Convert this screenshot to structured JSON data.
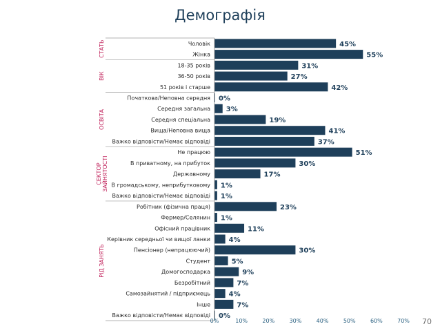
{
  "title": "Демографія",
  "page_number": "70",
  "colors": {
    "bar": "#1e3f5a",
    "group_label": "#c0205a",
    "divider": "#9a9a9a"
  },
  "chart_data": {
    "type": "bar",
    "orientation": "horizontal",
    "xlim": [
      0,
      70
    ],
    "x_ticks": [
      "0%",
      "10%",
      "20%",
      "30%",
      "40%",
      "50%",
      "60%",
      "70%"
    ],
    "groups": [
      {
        "label": "СТАТЬ",
        "label_lines": [
          "СТАТЬ"
        ],
        "items": [
          {
            "label": "Чоловік",
            "value": 45
          },
          {
            "label": "Жінка",
            "value": 55
          }
        ]
      },
      {
        "label": "ВІК",
        "label_lines": [
          "ВІК"
        ],
        "items": [
          {
            "label": "18-35 років",
            "value": 31
          },
          {
            "label": "36-50 років",
            "value": 27
          },
          {
            "label": "51 років і старше",
            "value": 42
          }
        ]
      },
      {
        "label": "ОСВІТА",
        "label_lines": [
          "ОСВІТА"
        ],
        "items": [
          {
            "label": "Початкова/Неповна середня",
            "value": 0
          },
          {
            "label": "Середня загальна",
            "value": 3
          },
          {
            "label": "Середня спеціальна",
            "value": 19
          },
          {
            "label": "Вища/Неповна вища",
            "value": 41
          },
          {
            "label": "Важко відповісти/Немає відповіді",
            "value": 37
          }
        ]
      },
      {
        "label": "СЕКТОР ЗАЙНЯТОСТІ",
        "label_lines": [
          "СЕКТОР",
          "ЗАЙНЯТОСТІ"
        ],
        "items": [
          {
            "label": "Не працюю",
            "value": 51
          },
          {
            "label": "В приватному, на прибуток",
            "value": 30
          },
          {
            "label": "Державному",
            "value": 17
          },
          {
            "label": "В громадському, неприбутковому",
            "value": 1
          },
          {
            "label": "Важко відповісти/Немає відповіді",
            "value": 1
          }
        ]
      },
      {
        "label": "РІД ЗАНЯТЬ",
        "label_lines": [
          "РІД ЗАНЯТЬ"
        ],
        "items": [
          {
            "label": "Робітник (фізична праця)",
            "value": 23
          },
          {
            "label": "Фермер/Селянин",
            "value": 1
          },
          {
            "label": "Офісний працівник",
            "value": 11
          },
          {
            "label": "Керівник середньої чи вищої ланки",
            "value": 4
          },
          {
            "label": "Пенсіонер (непрацюючий)",
            "value": 30
          },
          {
            "label": "Студент",
            "value": 5
          },
          {
            "label": "Домогосподарка",
            "value": 9
          },
          {
            "label": "Безробітний",
            "value": 7
          },
          {
            "label": "Самозайнятий / підприємець",
            "value": 4
          },
          {
            "label": "Інше",
            "value": 7
          },
          {
            "label": "Важко відповісти/Немає відповіді",
            "value": 0
          }
        ]
      }
    ]
  }
}
